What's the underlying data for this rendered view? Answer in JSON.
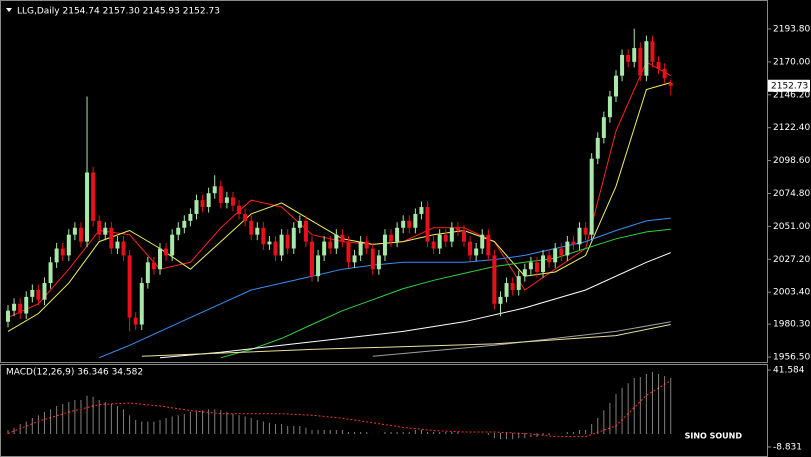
{
  "chart_data": [
    {
      "type": "candlestick",
      "title": "LLG,Daily 2154.74 2157.30 2145.93 2152.73",
      "up_color": "#a8e8a8",
      "down_color": "#e8101a",
      "ylim": [
        1952.9,
        2212.6
      ],
      "yticks": [
        {
          "value": 2193.8,
          "label": "2193.80"
        },
        {
          "value": 2170,
          "label": "2170.00"
        },
        {
          "value": 2146.2,
          "label": "2146.20"
        },
        {
          "value": 2122.4,
          "label": "2122.40"
        },
        {
          "value": 2098.6,
          "label": "2098.60"
        },
        {
          "value": 2074.8,
          "label": "2074.80"
        },
        {
          "value": 2051,
          "label": "2051.00"
        },
        {
          "value": 2027.2,
          "label": "2027.20"
        },
        {
          "value": 2003.4,
          "label": "2003.40"
        },
        {
          "value": 1980.3,
          "label": "1980.30"
        },
        {
          "value": 1956.5,
          "label": "1956.50"
        }
      ],
      "ohlc": [
        [
          1982,
          1994,
          1978,
          1990
        ],
        [
          1990,
          1999,
          1986,
          1995
        ],
        [
          1995,
          1999,
          1984,
          1988
        ],
        [
          1988,
          2004,
          1984,
          2000
        ],
        [
          2000,
          2009,
          1996,
          2005
        ],
        [
          2005,
          2009,
          1994,
          1998
        ],
        [
          1998,
          2014,
          1994,
          2010
        ],
        [
          2010,
          2029,
          2006,
          2025
        ],
        [
          2025,
          2039,
          2021,
          2035
        ],
        [
          2035,
          2039,
          2026,
          2030
        ],
        [
          2030,
          2049,
          2026,
          2045
        ],
        [
          2045,
          2054,
          2041,
          2050
        ],
        [
          2050,
          2054,
          2036,
          2040
        ],
        [
          2040,
          2145,
          2036,
          2090
        ],
        [
          2090,
          2094,
          2051,
          2055
        ],
        [
          2055,
          2059,
          2041,
          2045
        ],
        [
          2045,
          2054,
          2041,
          2050
        ],
        [
          2050,
          2054,
          2031,
          2035
        ],
        [
          2035,
          2044,
          2031,
          2040
        ],
        [
          2040,
          2044,
          2026,
          2030
        ],
        [
          2030,
          2034,
          1975,
          1985
        ],
        [
          1985,
          1989,
          1976,
          1980
        ],
        [
          1980,
          2014,
          1976,
          2010
        ],
        [
          2010,
          2029,
          2006,
          2025
        ],
        [
          2025,
          2029,
          2016,
          2020
        ],
        [
          2020,
          2039,
          2016,
          2035
        ],
        [
          2035,
          2039,
          2026,
          2030
        ],
        [
          2030,
          2049,
          2026,
          2045
        ],
        [
          2045,
          2054,
          2041,
          2050
        ],
        [
          2050,
          2059,
          2046,
          2055
        ],
        [
          2055,
          2064,
          2051,
          2060
        ],
        [
          2060,
          2074,
          2056,
          2070
        ],
        [
          2070,
          2074,
          2061,
          2065
        ],
        [
          2065,
          2079,
          2061,
          2075
        ],
        [
          2075,
          2088,
          2071,
          2080
        ],
        [
          2080,
          2084,
          2064,
          2068
        ],
        [
          2068,
          2076,
          2064,
          2072
        ],
        [
          2072,
          2076,
          2062,
          2066
        ],
        [
          2066,
          2070,
          2056,
          2060
        ],
        [
          2060,
          2064,
          2051,
          2055
        ],
        [
          2055,
          2059,
          2041,
          2045
        ],
        [
          2045,
          2054,
          2041,
          2050
        ],
        [
          2050,
          2054,
          2034,
          2038
        ],
        [
          2038,
          2044,
          2034,
          2040
        ],
        [
          2040,
          2044,
          2026,
          2030
        ],
        [
          2030,
          2049,
          2026,
          2045
        ],
        [
          2045,
          2049,
          2031,
          2035
        ],
        [
          2035,
          2054,
          2031,
          2050
        ],
        [
          2050,
          2059,
          2046,
          2055
        ],
        [
          2055,
          2059,
          2036,
          2040
        ],
        [
          2040,
          2044,
          2011,
          2015
        ],
        [
          2015,
          2034,
          2011,
          2030
        ],
        [
          2030,
          2044,
          2026,
          2040
        ],
        [
          2040,
          2044,
          2031,
          2035
        ],
        [
          2035,
          2049,
          2031,
          2045
        ],
        [
          2045,
          2049,
          2036,
          2040
        ],
        [
          2040,
          2044,
          2021,
          2025
        ],
        [
          2025,
          2034,
          2021,
          2030
        ],
        [
          2030,
          2044,
          2026,
          2040
        ],
        [
          2040,
          2044,
          2031,
          2035
        ],
        [
          2035,
          2039,
          2016,
          2020
        ],
        [
          2020,
          2034,
          2016,
          2030
        ],
        [
          2030,
          2049,
          2026,
          2045
        ],
        [
          2045,
          2049,
          2036,
          2040
        ],
        [
          2040,
          2054,
          2036,
          2050
        ],
        [
          2050,
          2059,
          2046,
          2055
        ],
        [
          2055,
          2059,
          2046,
          2050
        ],
        [
          2050,
          2064,
          2046,
          2060
        ],
        [
          2060,
          2069,
          2056,
          2065
        ],
        [
          2065,
          2069,
          2036,
          2040
        ],
        [
          2040,
          2044,
          2031,
          2035
        ],
        [
          2035,
          2049,
          2031,
          2045
        ],
        [
          2045,
          2049,
          2036,
          2040
        ],
        [
          2040,
          2054,
          2036,
          2050
        ],
        [
          2050,
          2054,
          2044,
          2048
        ],
        [
          2048,
          2052,
          2036,
          2040
        ],
        [
          2040,
          2044,
          2026,
          2030
        ],
        [
          2030,
          2039,
          2026,
          2035
        ],
        [
          2035,
          2049,
          2031,
          2045
        ],
        [
          2045,
          2049,
          2026,
          2030
        ],
        [
          2030,
          2034,
          1991,
          1995
        ],
        [
          1995,
          2004,
          1986,
          2000
        ],
        [
          2000,
          2014,
          1996,
          2010
        ],
        [
          2010,
          2014,
          2001,
          2005
        ],
        [
          2005,
          2019,
          2001,
          2015
        ],
        [
          2015,
          2024,
          2011,
          2020
        ],
        [
          2020,
          2029,
          2016,
          2025
        ],
        [
          2025,
          2029,
          2014,
          2018
        ],
        [
          2018,
          2034,
          2014,
          2030
        ],
        [
          2030,
          2034,
          2021,
          2025
        ],
        [
          2025,
          2039,
          2021,
          2035
        ],
        [
          2035,
          2039,
          2026,
          2030
        ],
        [
          2030,
          2044,
          2026,
          2040
        ],
        [
          2040,
          2044,
          2034,
          2038
        ],
        [
          2038,
          2054,
          2034,
          2050
        ],
        [
          2050,
          2054,
          2041,
          2045
        ],
        [
          2045,
          2104,
          2041,
          2100
        ],
        [
          2100,
          2119,
          2096,
          2115
        ],
        [
          2115,
          2134,
          2111,
          2130
        ],
        [
          2130,
          2149,
          2126,
          2145
        ],
        [
          2145,
          2164,
          2141,
          2160
        ],
        [
          2160,
          2179,
          2156,
          2175
        ],
        [
          2175,
          2179,
          2166,
          2170
        ],
        [
          2170,
          2194,
          2166,
          2180
        ],
        [
          2180,
          2184,
          2156,
          2160
        ],
        [
          2160,
          2189,
          2156,
          2185
        ],
        [
          2185,
          2189,
          2166,
          2170
        ],
        [
          2170,
          2174,
          2161,
          2165
        ],
        [
          2165,
          2169,
          2154,
          2158
        ],
        [
          2154.74,
          2157.3,
          2145.93,
          2152.73
        ]
      ],
      "moving_averages": [
        {
          "color": "#ff2020",
          "x": [
            0,
            5,
            10,
            15,
            20,
            25,
            30,
            35,
            40,
            45,
            50,
            55,
            60,
            65,
            70,
            75,
            80,
            85,
            90,
            95,
            100,
            105,
            109
          ],
          "values": [
            1985,
            1995,
            2020,
            2048,
            2045,
            2020,
            2025,
            2050,
            2070,
            2065,
            2045,
            2040,
            2038,
            2040,
            2050,
            2050,
            2040,
            2005,
            2020,
            2035,
            2120,
            2170,
            2160
          ]
        },
        {
          "color": "#f0f060",
          "x": [
            0,
            5,
            10,
            15,
            20,
            25,
            30,
            35,
            40,
            45,
            50,
            55,
            60,
            65,
            70,
            75,
            80,
            85,
            90,
            95,
            100,
            105,
            109
          ],
          "values": [
            1975,
            1988,
            2010,
            2040,
            2048,
            2035,
            2020,
            2040,
            2060,
            2068,
            2055,
            2042,
            2038,
            2040,
            2045,
            2048,
            2040,
            2015,
            2018,
            2030,
            2080,
            2150,
            2155
          ]
        },
        {
          "color": "#3a8ef0",
          "x": [
            15,
            20,
            25,
            30,
            35,
            40,
            45,
            50,
            55,
            60,
            65,
            70,
            75,
            80,
            85,
            90,
            95,
            100,
            105,
            109
          ],
          "values": [
            1956,
            1965,
            1975,
            1985,
            1995,
            2005,
            2010,
            2015,
            2020,
            2023,
            2025,
            2025,
            2025,
            2027,
            2030,
            2035,
            2040,
            2048,
            2055,
            2057
          ]
        },
        {
          "color": "#30d040",
          "x": [
            35,
            40,
            45,
            50,
            55,
            60,
            65,
            70,
            75,
            80,
            85,
            90,
            95,
            100,
            105,
            109
          ],
          "values": [
            1956,
            1962,
            1970,
            1980,
            1990,
            1998,
            2006,
            2012,
            2017,
            2022,
            2025,
            2028,
            2035,
            2042,
            2047,
            2049
          ]
        },
        {
          "color": "#ffffff",
          "x": [
            25,
            35,
            45,
            55,
            65,
            75,
            85,
            95,
            105,
            109
          ],
          "values": [
            1956,
            1960,
            1965,
            1970,
            1975,
            1982,
            1992,
            2005,
            2025,
            2032
          ]
        },
        {
          "color": "#a0a0a0",
          "x": [
            60,
            80,
            100,
            109
          ],
          "values": [
            1957,
            1965,
            1975,
            1982
          ]
        },
        {
          "color": "#e8e0a0",
          "x": [
            22,
            50,
            80,
            100,
            109
          ],
          "values": [
            1957,
            1962,
            1966,
            1972,
            1980
          ]
        }
      ]
    },
    {
      "type": "bar",
      "title": "MACD(12,26,9) 36.346 34.582",
      "color": "#ffffff",
      "ylim": [
        -14.07,
        44.86
      ],
      "yticks": [
        41.584,
        -8.831
      ],
      "values": [
        2,
        4,
        6,
        8,
        10,
        12,
        14,
        16,
        18,
        19,
        21,
        22,
        22,
        25,
        24,
        22,
        21,
        19,
        18,
        16,
        12,
        9,
        8,
        8,
        8,
        9,
        10,
        11,
        12,
        13,
        14,
        15,
        15,
        16,
        16,
        15,
        14,
        13,
        12,
        11,
        10,
        9,
        8,
        7,
        6,
        6,
        5,
        5,
        5,
        4,
        2,
        2,
        2,
        2,
        2,
        2,
        1,
        1,
        1,
        1,
        0,
        0,
        1,
        1,
        1,
        1,
        1,
        2,
        2,
        1,
        1,
        1,
        1,
        1,
        1,
        0,
        0,
        0,
        0,
        -1,
        -3,
        -4,
        -4,
        -4,
        -3,
        -3,
        -2,
        -2,
        -1,
        -1,
        0,
        0,
        1,
        1,
        2,
        2,
        6,
        10,
        15,
        20,
        26,
        30,
        33,
        36,
        37,
        39,
        40,
        39,
        38,
        36.346
      ],
      "signal": {
        "color": "#ff3030",
        "x": [
          0,
          5,
          10,
          15,
          20,
          25,
          30,
          35,
          40,
          45,
          50,
          55,
          60,
          65,
          70,
          75,
          80,
          85,
          90,
          95,
          100,
          105,
          109
        ],
        "values": [
          0,
          8,
          14,
          19,
          20,
          18,
          15,
          13,
          13,
          13,
          12,
          10,
          7,
          4,
          2,
          1,
          1,
          0,
          -2,
          -2,
          5,
          25,
          34.582
        ]
      }
    }
  ],
  "watermark": "SINO SOUND"
}
